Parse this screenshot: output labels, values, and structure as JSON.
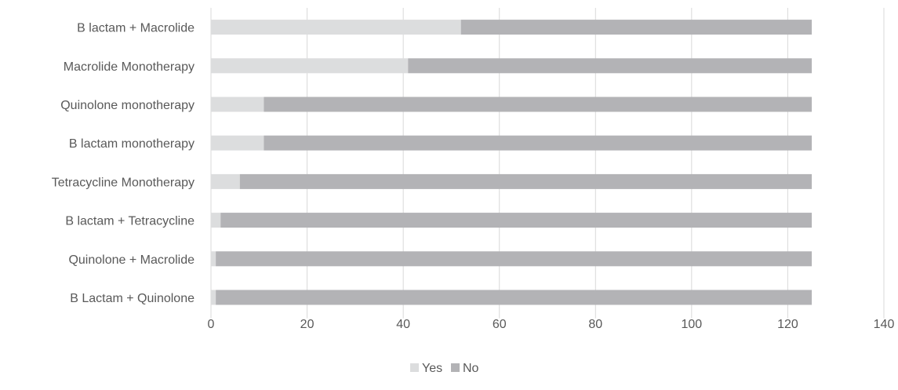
{
  "chart_data": {
    "type": "bar",
    "orientation": "horizontal",
    "stacked": true,
    "title": "",
    "xlabel": "",
    "ylabel": "",
    "categories": [
      "B lactam + Macrolide",
      "Macrolide Monotherapy",
      "Quinolone monotherapy",
      "B lactam monotherapy",
      "Tetracycline Monotherapy",
      "B lactam + Tetracycline",
      "Quinolone + Macrolide",
      "B Lactam + Quinolone"
    ],
    "series": [
      {
        "name": "Yes",
        "color": "#dcddde",
        "values": [
          52,
          41,
          11,
          11,
          6,
          2,
          1,
          1
        ]
      },
      {
        "name": "No",
        "color": "#b3b3b6",
        "values": [
          73,
          84,
          114,
          114,
          119,
          123,
          124,
          124
        ]
      }
    ],
    "xlim": [
      0,
      140
    ],
    "xticks": [
      0,
      20,
      40,
      60,
      80,
      100,
      120,
      140
    ],
    "grid": "vertical",
    "legend_position": "bottom"
  }
}
